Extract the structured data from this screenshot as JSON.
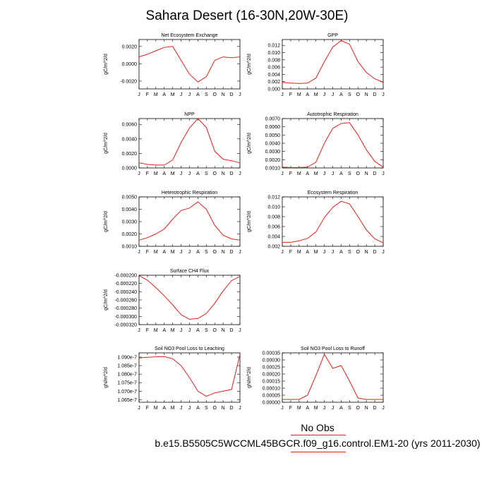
{
  "title": "Sahara Desert (16-30N,20W-30E)",
  "legend": {
    "obs_label": "No Obs",
    "model_label": "b.e15.B5505C5WCCML45BGCR.f09_g16.control.EM1-20 (yrs 2011-2030)",
    "line_color": "#e0201a"
  },
  "chart_data": [
    {
      "type": "line",
      "title": "Net Ecosystem Exchange",
      "ylabel": "gC/m^2/d",
      "categories": [
        "J",
        "F",
        "M",
        "A",
        "M",
        "J",
        "J",
        "A",
        "S",
        "O",
        "N",
        "D",
        "J"
      ],
      "yticks": [
        "0.0020",
        "0.0000",
        "-0.0020"
      ],
      "ytick_values": [
        0.002,
        0.0,
        -0.002
      ],
      "ylim": [
        -0.0029,
        0.0028
      ],
      "values": [
        0.0008,
        0.0011,
        0.0015,
        0.0019,
        0.002,
        0.0004,
        -0.0012,
        -0.0021,
        -0.0015,
        0.0004,
        0.0008,
        0.0007,
        0.0008
      ]
    },
    {
      "type": "line",
      "title": "GPP",
      "ylabel": "gC/m^2/d",
      "categories": [
        "J",
        "F",
        "M",
        "A",
        "M",
        "J",
        "J",
        "A",
        "S",
        "O",
        "N",
        "D",
        "J"
      ],
      "yticks": [
        "0.012",
        "0.010",
        "0.008",
        "0.006",
        "0.004",
        "0.002",
        "0.000"
      ],
      "ytick_values": [
        0.012,
        0.01,
        0.008,
        0.006,
        0.004,
        0.002,
        0.0
      ],
      "ylim": [
        0.0,
        0.0136
      ],
      "values": [
        0.0018,
        0.0016,
        0.0015,
        0.0016,
        0.003,
        0.0075,
        0.0115,
        0.0133,
        0.0123,
        0.0075,
        0.0045,
        0.0028,
        0.0018
      ]
    },
    {
      "type": "line",
      "title": "NPP",
      "ylabel": "gC/m^2/d",
      "categories": [
        "J",
        "F",
        "M",
        "A",
        "M",
        "J",
        "J",
        "A",
        "S",
        "O",
        "N",
        "D",
        "J"
      ],
      "yticks": [
        "0.0060",
        "0.0040",
        "0.0020",
        "0.0000"
      ],
      "ytick_values": [
        0.006,
        0.004,
        0.002,
        0.0
      ],
      "ylim": [
        0.0,
        0.0068
      ],
      "values": [
        0.0007,
        0.0005,
        0.0004,
        0.0004,
        0.0011,
        0.0035,
        0.0055,
        0.0068,
        0.0056,
        0.0023,
        0.0012,
        0.001,
        0.0007
      ]
    },
    {
      "type": "line",
      "title": "Autotrophic Respiration",
      "ylabel": "gC/m^2/d",
      "categories": [
        "J",
        "F",
        "M",
        "A",
        "M",
        "J",
        "J",
        "A",
        "S",
        "O",
        "N",
        "D",
        "J"
      ],
      "yticks": [
        "0.0070",
        "0.0060",
        "0.0050",
        "0.0040",
        "0.0030",
        "0.0020",
        "0.0010"
      ],
      "ytick_values": [
        0.007,
        0.006,
        0.005,
        0.004,
        0.003,
        0.002,
        0.001
      ],
      "ylim": [
        0.001,
        0.007
      ],
      "values": [
        0.0011,
        0.00105,
        0.00105,
        0.0011,
        0.0017,
        0.004,
        0.0058,
        0.0064,
        0.0065,
        0.005,
        0.0032,
        0.0018,
        0.0011
      ]
    },
    {
      "type": "line",
      "title": "Heterotrophic Respiration",
      "ylabel": "gC/m^2/d",
      "categories": [
        "J",
        "F",
        "M",
        "A",
        "M",
        "J",
        "J",
        "A",
        "S",
        "O",
        "N",
        "D",
        "J"
      ],
      "yticks": [
        "0.0050",
        "0.0040",
        "0.0030",
        "0.0020",
        "0.0010"
      ],
      "ytick_values": [
        0.005,
        0.004,
        0.003,
        0.002,
        0.001
      ],
      "ylim": [
        0.001,
        0.005
      ],
      "values": [
        0.0015,
        0.0017,
        0.002,
        0.0024,
        0.0032,
        0.0039,
        0.0041,
        0.0046,
        0.004,
        0.0027,
        0.0019,
        0.0016,
        0.0015
      ]
    },
    {
      "type": "line",
      "title": "Ecosystem Respiration",
      "ylabel": "gC/m^2/d",
      "categories": [
        "J",
        "F",
        "M",
        "A",
        "M",
        "J",
        "J",
        "A",
        "S",
        "O",
        "N",
        "D",
        "J"
      ],
      "yticks": [
        "0.012",
        "0.010",
        "0.008",
        "0.006",
        "0.004",
        "0.002"
      ],
      "ytick_values": [
        0.012,
        0.01,
        0.008,
        0.006,
        0.004,
        0.002
      ],
      "ylim": [
        0.002,
        0.012
      ],
      "values": [
        0.0028,
        0.0028,
        0.0031,
        0.0036,
        0.0049,
        0.0078,
        0.0099,
        0.0111,
        0.0106,
        0.008,
        0.0053,
        0.0035,
        0.0027
      ]
    },
    {
      "type": "line",
      "title": "Surface CH4 Flux",
      "ylabel": "gC/m^2/d",
      "categories": [
        "J",
        "F",
        "M",
        "A",
        "M",
        "J",
        "J",
        "A",
        "S",
        "O",
        "N",
        "D",
        "J"
      ],
      "yticks": [
        "-0.000200",
        "-0.000220",
        "-0.000240",
        "-0.000260",
        "-0.000280",
        "-0.000300",
        "-0.000320"
      ],
      "ytick_values": [
        -0.0002,
        -0.00022,
        -0.00024,
        -0.00026,
        -0.00028,
        -0.0003,
        -0.00032
      ],
      "ylim": [
        -0.00032,
        -0.0002
      ],
      "values": [
        -0.000201,
        -0.000212,
        -0.00023,
        -0.00025,
        -0.000272,
        -0.000296,
        -0.000307,
        -0.000305,
        -0.000293,
        -0.000268,
        -0.000238,
        -0.000213,
        -0.000203
      ]
    },
    {
      "type": "line",
      "title": "Soil NO3 Pool Loss to Leaching",
      "ylabel": "gN/m^2/d",
      "categories": [
        "J",
        "F",
        "M",
        "A",
        "M",
        "J",
        "J",
        "A",
        "S",
        "O",
        "N",
        "D",
        "J"
      ],
      "yticks": [
        "1.090e-7",
        "1.085e-7",
        "1.080e-7",
        "1.075e-7",
        "1.070e-7",
        "1.065e-7"
      ],
      "ytick_values": [
        1.09e-07,
        1.085e-07,
        1.08e-07,
        1.075e-07,
        1.07e-07,
        1.065e-07
      ],
      "ylim": [
        1.0635e-07,
        1.0925e-07
      ],
      "values": [
        1.0895e-07,
        1.0899e-07,
        1.0902e-07,
        1.0903e-07,
        1.089e-07,
        1.085e-07,
        1.078e-07,
        1.07e-07,
        1.067e-07,
        1.069e-07,
        1.07e-07,
        1.071e-07,
        1.0915e-07
      ]
    },
    {
      "type": "line",
      "title": "Soil NO3 Pool Loss to Runoff",
      "ylabel": "gN/m^2/d",
      "categories": [
        "J",
        "F",
        "M",
        "A",
        "M",
        "J",
        "J",
        "A",
        "S",
        "O",
        "N",
        "D",
        "J"
      ],
      "yticks": [
        "0.00035",
        "0.00030",
        "0.00025",
        "0.00020",
        "0.00015",
        "0.00010",
        "0.00005",
        "0.00000"
      ],
      "ytick_values": [
        0.00035,
        0.0003,
        0.00025,
        0.0002,
        0.00015,
        0.0001,
        5e-05,
        0.0
      ],
      "ylim": [
        0.0,
        0.00035
      ],
      "values": [
        2e-05,
        2e-05,
        2e-05,
        5e-05,
        0.00019,
        0.00034,
        0.00024,
        0.00026,
        0.00015,
        3e-05,
        2e-05,
        2e-05,
        2e-05
      ]
    }
  ]
}
